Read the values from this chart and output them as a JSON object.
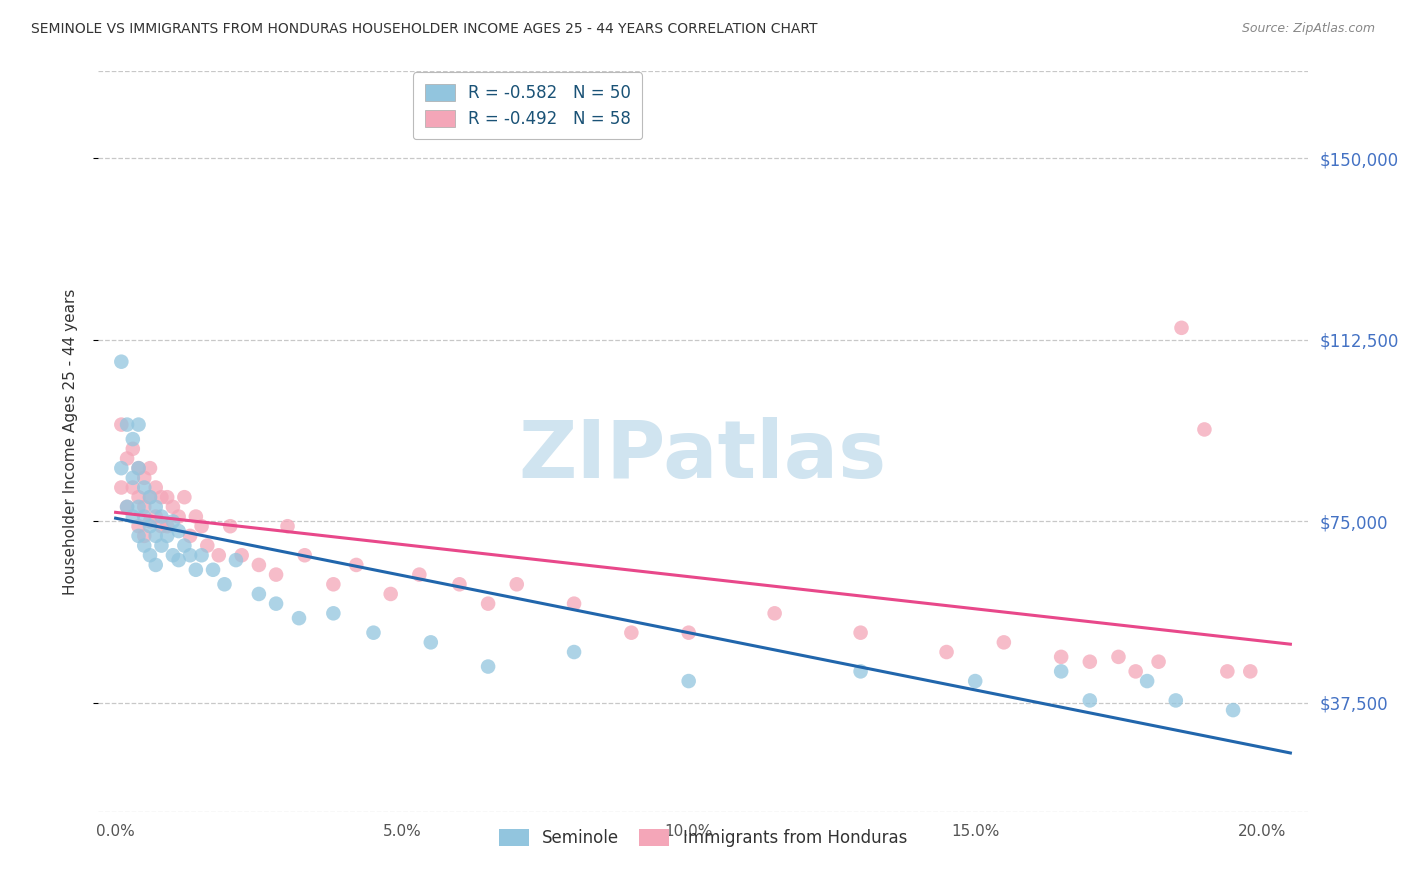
{
  "title": "SEMINOLE VS IMMIGRANTS FROM HONDURAS HOUSEHOLDER INCOME AGES 25 - 44 YEARS CORRELATION CHART",
  "source": "Source: ZipAtlas.com",
  "ylabel": "Householder Income Ages 25 - 44 years",
  "ytick_labels": [
    "$37,500",
    "$75,000",
    "$112,500",
    "$150,000"
  ],
  "ytick_vals": [
    37500,
    75000,
    112500,
    150000
  ],
  "xtick_labels": [
    "0.0%",
    "5.0%",
    "10.0%",
    "15.0%",
    "20.0%"
  ],
  "xtick_vals": [
    0.0,
    0.05,
    0.1,
    0.15,
    0.2
  ],
  "ylim": [
    15000,
    168000
  ],
  "xlim": [
    -0.003,
    0.208
  ],
  "blue_color": "#92c5de",
  "pink_color": "#f4a6b8",
  "blue_line_color": "#2166ac",
  "pink_line_color": "#e8488a",
  "bg_color": "#ffffff",
  "grid_color": "#c8c8c8",
  "watermark_text": "ZIPatlas",
  "watermark_color": "#d0e4f0",
  "title_color": "#333333",
  "source_color": "#888888",
  "ytick_color": "#4472c4",
  "legend_label_1": "R = -0.582   N = 50",
  "legend_label_2": "R = -0.492   N = 58",
  "legend_text_color": "#1a5276",
  "bottom_legend_color": "#333333",
  "seminole_x": [
    0.001,
    0.001,
    0.002,
    0.002,
    0.003,
    0.003,
    0.003,
    0.004,
    0.004,
    0.004,
    0.004,
    0.005,
    0.005,
    0.005,
    0.006,
    0.006,
    0.006,
    0.007,
    0.007,
    0.007,
    0.008,
    0.008,
    0.009,
    0.01,
    0.01,
    0.011,
    0.011,
    0.012,
    0.013,
    0.014,
    0.015,
    0.017,
    0.019,
    0.021,
    0.025,
    0.028,
    0.032,
    0.038,
    0.045,
    0.055,
    0.065,
    0.08,
    0.1,
    0.13,
    0.15,
    0.165,
    0.17,
    0.18,
    0.185,
    0.195
  ],
  "seminole_y": [
    108000,
    86000,
    95000,
    78000,
    92000,
    84000,
    76000,
    95000,
    86000,
    78000,
    72000,
    82000,
    76000,
    70000,
    80000,
    74000,
    68000,
    78000,
    72000,
    66000,
    76000,
    70000,
    72000,
    75000,
    68000,
    73000,
    67000,
    70000,
    68000,
    65000,
    68000,
    65000,
    62000,
    67000,
    60000,
    58000,
    55000,
    56000,
    52000,
    50000,
    45000,
    48000,
    42000,
    44000,
    42000,
    44000,
    38000,
    42000,
    38000,
    36000
  ],
  "honduras_x": [
    0.001,
    0.001,
    0.002,
    0.002,
    0.003,
    0.003,
    0.004,
    0.004,
    0.004,
    0.005,
    0.005,
    0.005,
    0.006,
    0.006,
    0.006,
    0.007,
    0.007,
    0.008,
    0.008,
    0.009,
    0.009,
    0.01,
    0.011,
    0.012,
    0.013,
    0.014,
    0.015,
    0.016,
    0.018,
    0.02,
    0.022,
    0.025,
    0.028,
    0.03,
    0.033,
    0.038,
    0.042,
    0.048,
    0.053,
    0.06,
    0.065,
    0.07,
    0.08,
    0.09,
    0.1,
    0.115,
    0.13,
    0.145,
    0.155,
    0.165,
    0.17,
    0.175,
    0.178,
    0.182,
    0.186,
    0.19,
    0.194,
    0.198
  ],
  "honduras_y": [
    95000,
    82000,
    88000,
    78000,
    90000,
    82000,
    86000,
    80000,
    74000,
    84000,
    78000,
    72000,
    86000,
    80000,
    75000,
    82000,
    76000,
    80000,
    74000,
    80000,
    74000,
    78000,
    76000,
    80000,
    72000,
    76000,
    74000,
    70000,
    68000,
    74000,
    68000,
    66000,
    64000,
    74000,
    68000,
    62000,
    66000,
    60000,
    64000,
    62000,
    58000,
    62000,
    58000,
    52000,
    52000,
    56000,
    52000,
    48000,
    50000,
    47000,
    46000,
    47000,
    44000,
    46000,
    115000,
    94000,
    44000,
    44000
  ]
}
